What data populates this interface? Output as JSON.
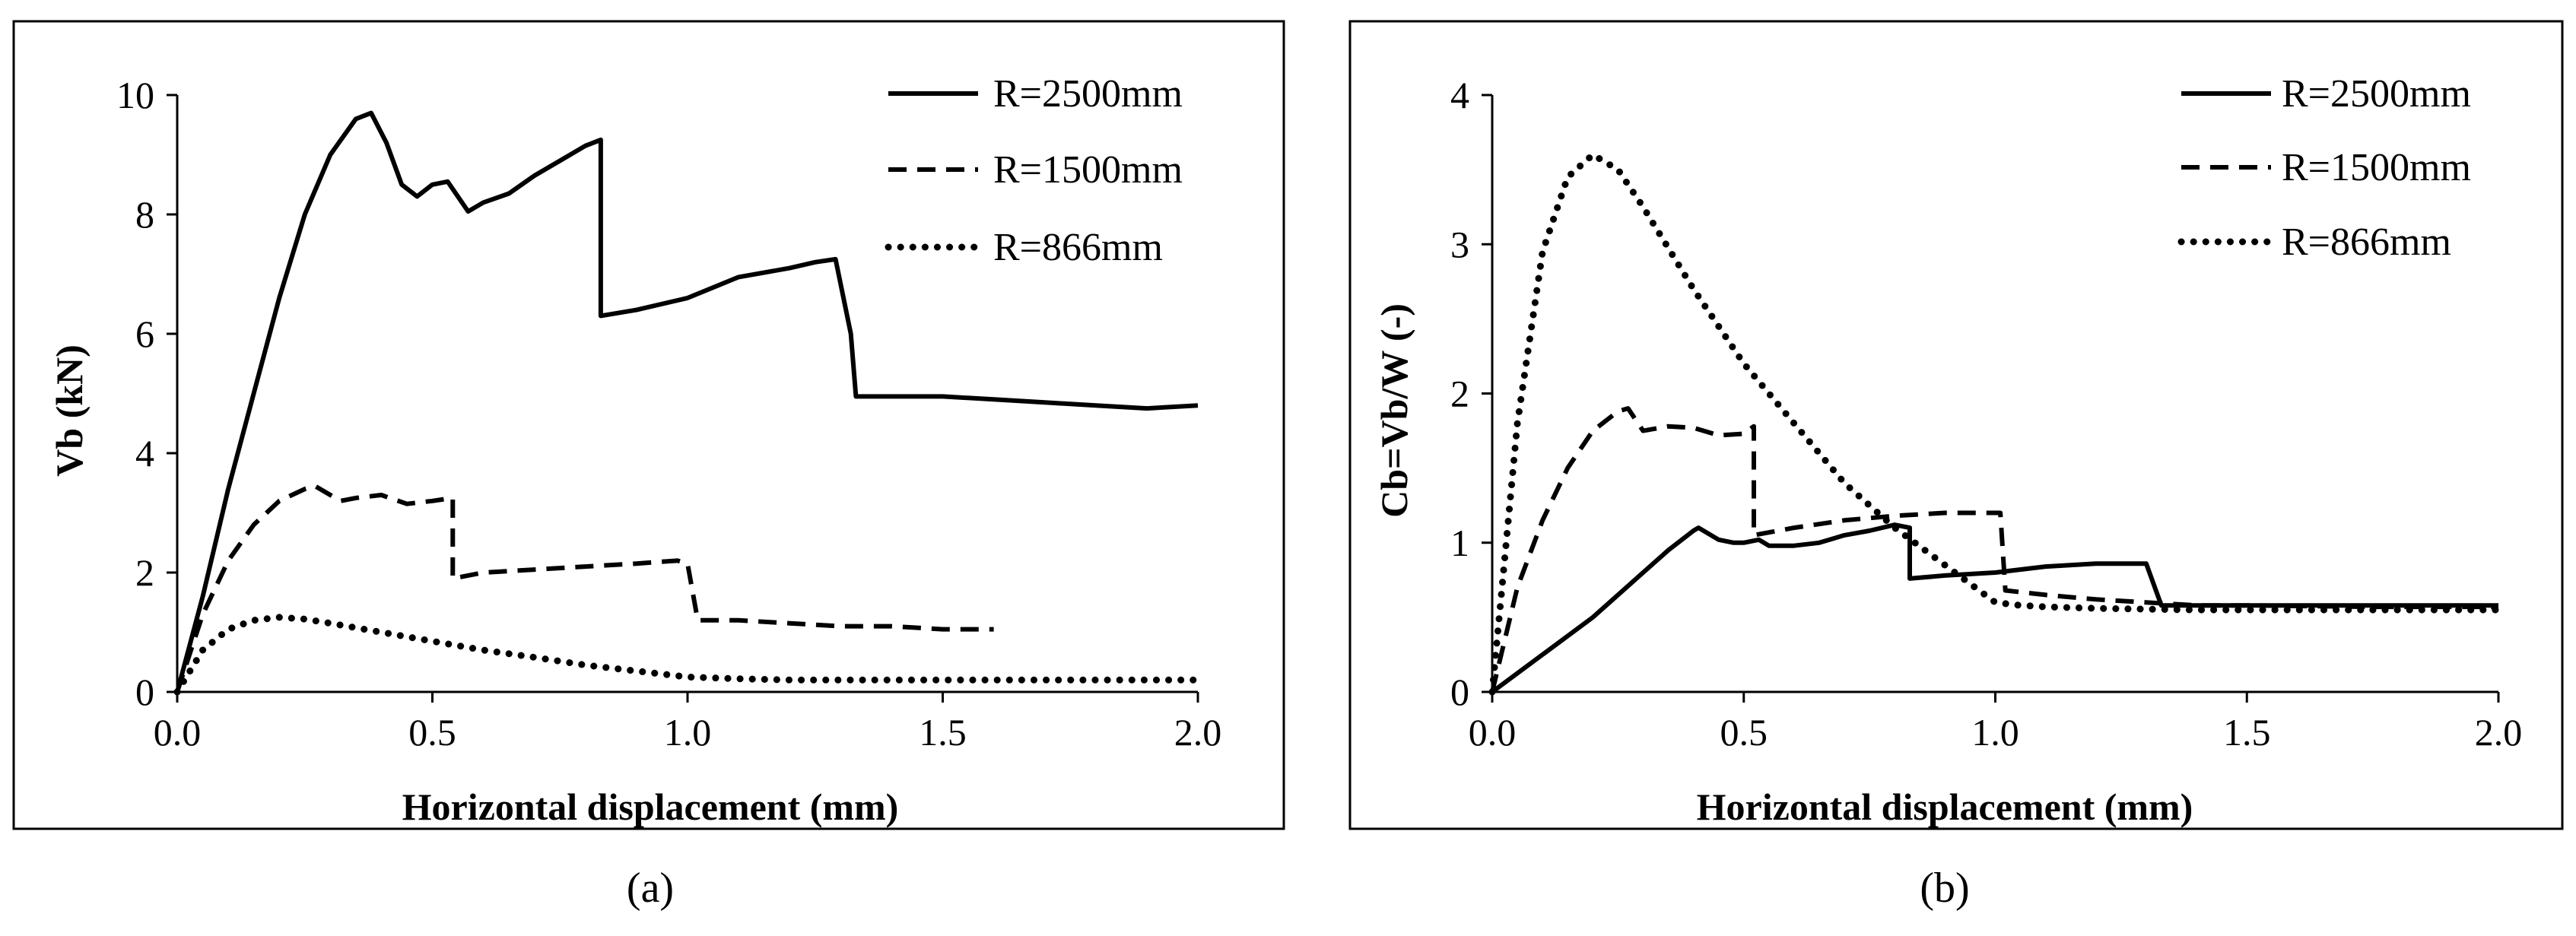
{
  "chart_data": [
    {
      "type": "line",
      "panel_label": "(a)",
      "title": "",
      "xlabel": "Horizontal displacement (mm)",
      "ylabel": "Vb (kN)",
      "xlim": [
        0,
        2
      ],
      "ylim": [
        0,
        10
      ],
      "xticks": [
        0,
        0.5,
        1,
        1.5,
        2
      ],
      "xtick_labels": [
        "0.0",
        "0.5",
        "1.0",
        "1.5",
        "2.0"
      ],
      "yticks": [
        0,
        2,
        4,
        6,
        8,
        10
      ],
      "ytick_labels": [
        "0",
        "2",
        "4",
        "6",
        "8",
        "10"
      ],
      "legend_position": "top-right",
      "series": [
        {
          "name": "R=2500mm",
          "style": "solid",
          "x": [
            0,
            0.05,
            0.1,
            0.15,
            0.2,
            0.25,
            0.3,
            0.35,
            0.38,
            0.41,
            0.44,
            0.47,
            0.5,
            0.53,
            0.57,
            0.6,
            0.65,
            0.7,
            0.75,
            0.8,
            0.83,
            0.83,
            0.9,
            1.0,
            1.1,
            1.2,
            1.25,
            1.29,
            1.32,
            1.33,
            1.5,
            1.6,
            1.7,
            1.8,
            1.9,
            2.0
          ],
          "y": [
            0,
            1.6,
            3.4,
            5.0,
            6.6,
            8.0,
            9.0,
            9.6,
            9.7,
            9.2,
            8.5,
            8.3,
            8.5,
            8.55,
            8.05,
            8.2,
            8.35,
            8.65,
            8.9,
            9.15,
            9.25,
            6.3,
            6.4,
            6.6,
            6.95,
            7.1,
            7.2,
            7.25,
            6.0,
            4.95,
            4.95,
            4.9,
            4.85,
            4.8,
            4.75,
            4.8
          ]
        },
        {
          "name": "R=1500mm",
          "style": "dashed",
          "x": [
            0,
            0.05,
            0.1,
            0.15,
            0.2,
            0.25,
            0.27,
            0.3,
            0.32,
            0.35,
            0.4,
            0.45,
            0.5,
            0.54,
            0.54,
            0.6,
            0.7,
            0.8,
            0.9,
            0.98,
            1.0,
            1.02,
            1.1,
            1.2,
            1.3,
            1.4,
            1.5,
            1.6
          ],
          "y": [
            0,
            1.3,
            2.2,
            2.8,
            3.2,
            3.4,
            3.45,
            3.3,
            3.2,
            3.25,
            3.3,
            3.15,
            3.2,
            3.25,
            1.9,
            2.0,
            2.05,
            2.1,
            2.15,
            2.2,
            2.15,
            1.2,
            1.2,
            1.15,
            1.1,
            1.1,
            1.05,
            1.05
          ]
        },
        {
          "name": "R=866mm",
          "style": "dotted",
          "x": [
            0,
            0.05,
            0.1,
            0.15,
            0.2,
            0.25,
            0.3,
            0.4,
            0.5,
            0.6,
            0.7,
            0.8,
            0.9,
            1.0,
            1.1,
            1.2,
            1.4,
            1.6,
            1.8,
            2.0
          ],
          "y": [
            0,
            0.7,
            1.05,
            1.2,
            1.25,
            1.22,
            1.15,
            1.0,
            0.85,
            0.7,
            0.58,
            0.45,
            0.35,
            0.25,
            0.22,
            0.2,
            0.2,
            0.2,
            0.2,
            0.2
          ]
        }
      ]
    },
    {
      "type": "line",
      "panel_label": "(b)",
      "title": "",
      "xlabel": "Horizontal displacement (mm)",
      "ylabel": "Cb=Vb/W (-)",
      "xlim": [
        0,
        2
      ],
      "ylim": [
        0,
        4
      ],
      "xticks": [
        0,
        0.5,
        1,
        1.5,
        2
      ],
      "xtick_labels": [
        "0.0",
        "0.5",
        "1.0",
        "1.5",
        "2.0"
      ],
      "yticks": [
        0,
        1,
        2,
        3,
        4
      ],
      "ytick_labels": [
        "0",
        "1",
        "2",
        "3",
        "4"
      ],
      "legend_position": "top-right",
      "series": [
        {
          "name": "R=2500mm",
          "style": "solid",
          "x": [
            0,
            0.1,
            0.2,
            0.3,
            0.35,
            0.4,
            0.41,
            0.45,
            0.48,
            0.5,
            0.53,
            0.55,
            0.6,
            0.65,
            0.7,
            0.75,
            0.8,
            0.83,
            0.83,
            0.9,
            1.0,
            1.1,
            1.2,
            1.25,
            1.3,
            1.33,
            1.5,
            1.75,
            2.0
          ],
          "y": [
            0,
            0.25,
            0.5,
            0.8,
            0.95,
            1.08,
            1.1,
            1.02,
            1.0,
            1.0,
            1.02,
            0.98,
            0.98,
            1.0,
            1.05,
            1.08,
            1.12,
            1.1,
            0.76,
            0.78,
            0.8,
            0.84,
            0.86,
            0.86,
            0.86,
            0.58,
            0.58,
            0.58,
            0.58
          ]
        },
        {
          "name": "R=1500mm",
          "style": "dashed",
          "x": [
            0,
            0.05,
            0.1,
            0.15,
            0.2,
            0.25,
            0.27,
            0.3,
            0.35,
            0.4,
            0.45,
            0.5,
            0.52,
            0.52,
            0.6,
            0.7,
            0.8,
            0.9,
            1.0,
            1.01,
            1.02,
            1.1,
            1.2,
            1.3,
            1.4,
            1.5,
            1.75,
            2.0
          ],
          "y": [
            0,
            0.7,
            1.15,
            1.5,
            1.75,
            1.88,
            1.9,
            1.75,
            1.78,
            1.77,
            1.72,
            1.73,
            1.78,
            1.05,
            1.1,
            1.15,
            1.18,
            1.2,
            1.2,
            1.2,
            0.68,
            0.65,
            0.62,
            0.6,
            0.58,
            0.58,
            0.57,
            0.57
          ]
        },
        {
          "name": "R=866mm",
          "style": "dotted",
          "x": [
            0,
            0.05,
            0.1,
            0.15,
            0.2,
            0.25,
            0.3,
            0.4,
            0.5,
            0.6,
            0.7,
            0.8,
            0.9,
            1.0,
            1.05,
            1.1,
            1.2,
            1.4,
            1.6,
            1.8,
            2.0
          ],
          "y": [
            0,
            1.8,
            2.95,
            3.45,
            3.6,
            3.5,
            3.25,
            2.7,
            2.2,
            1.8,
            1.4,
            1.1,
            0.85,
            0.6,
            0.58,
            0.57,
            0.56,
            0.55,
            0.55,
            0.55,
            0.55
          ]
        }
      ]
    }
  ]
}
